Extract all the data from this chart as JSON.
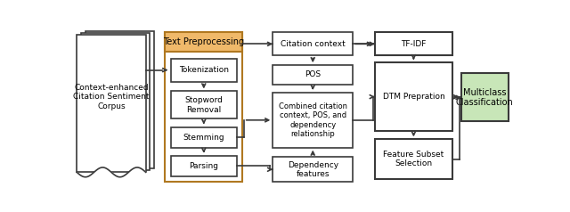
{
  "bg_color": "#ffffff",
  "edge_color": "#3a3a3a",
  "orange_fill": "#f0b96a",
  "orange_edge": "#b07820",
  "green_fill": "#c8e6b8",
  "green_edge": "#3a3a3a",
  "white_fill": "#ffffff",
  "arrow_color": "#3a3a3a",
  "font_size": 6.5,
  "lw": 1.2,
  "corpus_label": "Context-enhanced\nCitation Sentiment\nCorpus",
  "preprocess_label": "Text Preprocessing",
  "tok_label": "Tokenization",
  "sw_label": "Stopword\nRemoval",
  "stem_label": "Stemming",
  "parse_label": "Parsing",
  "cc_label": "Citation context",
  "pos_label": "POS",
  "comb_label": "Combined citation\ncontext, POS, and\ndependency\nrelationship",
  "dep_label": "Dependency\nfeatures",
  "tfidf_label": "TF-IDF",
  "dtm_label": "DTM Prepration",
  "fss_label": "Feature Subset\nSelection",
  "mc_label": "Multiclass\nClassification"
}
